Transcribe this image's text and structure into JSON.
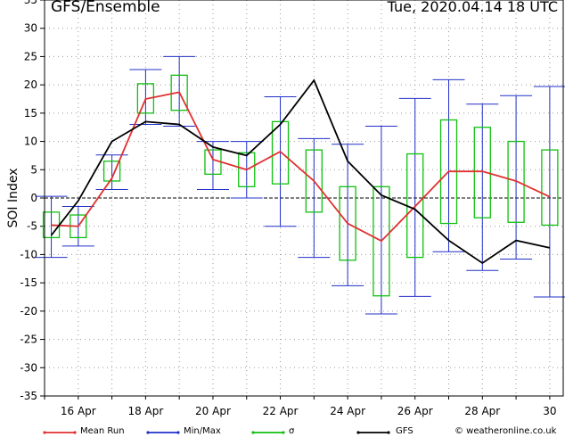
{
  "header": {
    "title": "GFS/Ensemble",
    "timestamp": "Tue, 2020.04.14   18 UTC"
  },
  "footer": {
    "credit": "© weatheronline.co.uk"
  },
  "colors": {
    "mean_run": "#e03030",
    "min_max": "#2030c8",
    "sigma": "#10c010",
    "gfs": "#000000",
    "grid": "#999999"
  },
  "chart_data": {
    "type": "line",
    "ylabel": "SOI Index",
    "ylim": [
      -35,
      35
    ],
    "yticks": [
      -35,
      -30,
      -25,
      -20,
      -15,
      -10,
      -5,
      0,
      5,
      10,
      15,
      20,
      25,
      30,
      35
    ],
    "xlim": [
      15.0,
      30.4
    ],
    "x_ticks": [
      {
        "x": 16,
        "label": "16 Apr"
      },
      {
        "x": 18,
        "label": "18 Apr"
      },
      {
        "x": 20,
        "label": "20 Apr"
      },
      {
        "x": 22,
        "label": "22 Apr"
      },
      {
        "x": 24,
        "label": "24 Apr"
      },
      {
        "x": 26,
        "label": "26 Apr"
      },
      {
        "x": 28,
        "label": "28 Apr"
      },
      {
        "x": 30,
        "label": "30"
      }
    ],
    "x": [
      15.2,
      16.0,
      17.0,
      18.0,
      19.0,
      20.0,
      21.0,
      22.0,
      23.0,
      24.0,
      25.0,
      26.0,
      27.0,
      28.0,
      29.0,
      30.0
    ],
    "series": [
      {
        "name": "Mean Run",
        "values": [
          -4.8,
          -5.0,
          3.5,
          17.5,
          18.7,
          6.8,
          5.0,
          8.2,
          3.0,
          -4.5,
          -7.6,
          -1.5,
          4.7,
          4.7,
          3.0,
          0.2
        ]
      },
      {
        "name": "GFS",
        "values": [
          -6.6,
          -0.5,
          10.0,
          13.5,
          13.0,
          9.0,
          7.5,
          13.0,
          20.8,
          6.5,
          0.5,
          -2.0,
          -7.5,
          -11.5,
          -7.5,
          -8.8
        ]
      },
      {
        "name": "Min/Max",
        "min": [
          -10.5,
          -8.5,
          1.5,
          13.0,
          12.7,
          1.5,
          0.0,
          -5.0,
          -10.5,
          -15.5,
          -20.5,
          -17.4,
          -9.5,
          -12.8,
          -10.8,
          -17.5
        ],
        "max": [
          0.3,
          -1.5,
          7.6,
          22.7,
          25.0,
          10.0,
          10.0,
          17.9,
          10.5,
          9.5,
          12.7,
          17.6,
          20.9,
          16.6,
          18.1,
          19.7
        ]
      },
      {
        "name": "σ",
        "low": [
          -7.0,
          -7.0,
          3.0,
          15.0,
          15.5,
          4.2,
          2.0,
          2.5,
          -2.5,
          -11.0,
          -17.3,
          -10.5,
          -4.5,
          -3.5,
          -4.3,
          -4.8
        ],
        "high": [
          -2.5,
          -3.0,
          6.5,
          20.2,
          21.7,
          8.5,
          8.0,
          13.5,
          8.5,
          2.0,
          2.0,
          7.8,
          13.8,
          12.5,
          10.0,
          8.5
        ]
      }
    ],
    "legend": {
      "placement": "bottom",
      "items": [
        "Mean Run",
        "Min/Max",
        "σ",
        "GFS"
      ]
    },
    "grid": true,
    "zero_line": "dashed"
  }
}
